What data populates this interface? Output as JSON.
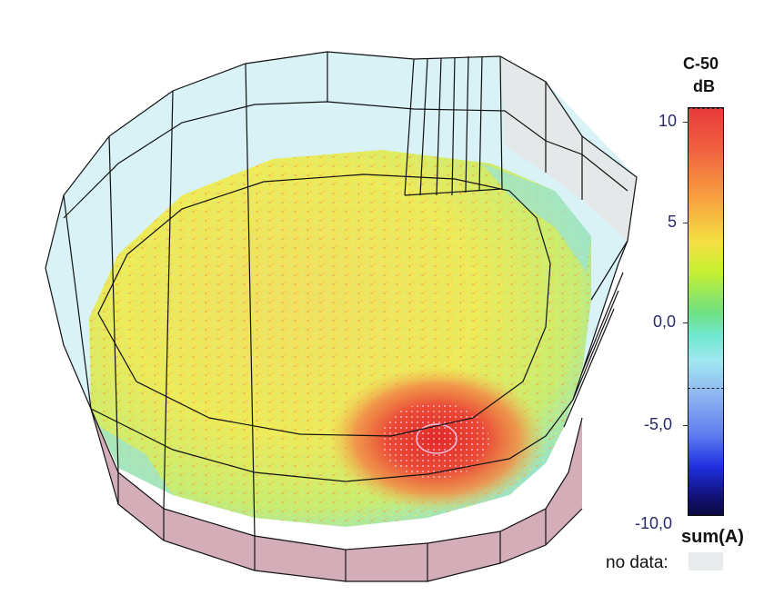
{
  "legend": {
    "metric": "C-50",
    "unit": "dB",
    "ticks": [
      "10",
      "5",
      "0,0",
      "-5,0",
      "-10,0"
    ],
    "mode": "sum(A)",
    "no_data_label": "no data:",
    "no_data_color": "#e8ecec",
    "colorscale": [
      "#e83a3a",
      "#f8a040",
      "#f4e040",
      "#c8f030",
      "#70e080",
      "#a0e8f0",
      "#6080f0",
      "#2030e0",
      "#0a0a40"
    ]
  },
  "scene": {
    "floor_color": "#ecef5a",
    "hotspot_color": "#e8483a",
    "wall_color": "#d8f2f6",
    "side_fill_color": "#c89aa8"
  }
}
